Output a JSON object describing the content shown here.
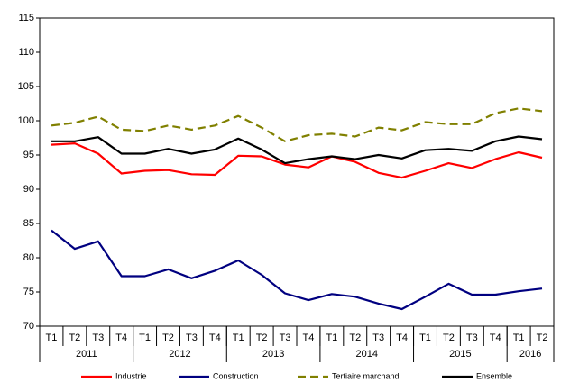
{
  "chart_data": {
    "type": "line",
    "categories": [
      "T1",
      "T2",
      "T3",
      "T4",
      "T1",
      "T2",
      "T3",
      "T4",
      "T1",
      "T2",
      "T3",
      "T4",
      "T1",
      "T2",
      "T3",
      "T4",
      "T1",
      "T2",
      "T3",
      "T4",
      "T1",
      "T2"
    ],
    "year_labels": [
      "2011",
      "2012",
      "2013",
      "2014",
      "2015",
      "2016"
    ],
    "quarters_per_year": 4,
    "ylim": [
      70,
      115
    ],
    "yticks": [
      70,
      75,
      80,
      85,
      90,
      95,
      100,
      105,
      110,
      115
    ],
    "grid": false,
    "legend": "bottom",
    "series": [
      {
        "name": "Industrie",
        "color": "#ff0000",
        "dashed": false,
        "values": [
          96.5,
          96.7,
          95.2,
          92.3,
          92.7,
          92.8,
          92.2,
          92.1,
          94.9,
          94.8,
          93.6,
          93.2,
          94.8,
          94.0,
          92.4,
          91.7,
          92.7,
          93.8,
          93.1,
          94.4,
          95.4,
          94.6
        ]
      },
      {
        "name": "Construction",
        "color": "#000080",
        "dashed": false,
        "values": [
          84.0,
          81.3,
          82.4,
          77.3,
          77.3,
          78.3,
          77.0,
          78.1,
          79.6,
          77.5,
          74.8,
          73.8,
          74.7,
          74.3,
          73.3,
          72.5,
          74.3,
          76.2,
          74.6,
          74.6,
          75.1,
          75.5
        ]
      },
      {
        "name": "Tertiaire marchand",
        "color": "#808000",
        "dashed": true,
        "values": [
          99.3,
          99.7,
          100.6,
          98.7,
          98.5,
          99.3,
          98.7,
          99.3,
          100.7,
          99.0,
          97.0,
          97.9,
          98.1,
          97.7,
          99.0,
          98.6,
          99.8,
          99.5,
          99.5,
          101.1,
          101.8,
          101.4
        ]
      },
      {
        "name": "Ensemble",
        "color": "#000000",
        "dashed": false,
        "values": [
          97.0,
          97.0,
          97.6,
          95.2,
          95.2,
          95.9,
          95.2,
          95.8,
          97.4,
          95.8,
          93.8,
          94.4,
          94.8,
          94.4,
          95.0,
          94.5,
          95.7,
          95.9,
          95.6,
          97.0,
          97.7,
          97.3
        ]
      }
    ]
  }
}
